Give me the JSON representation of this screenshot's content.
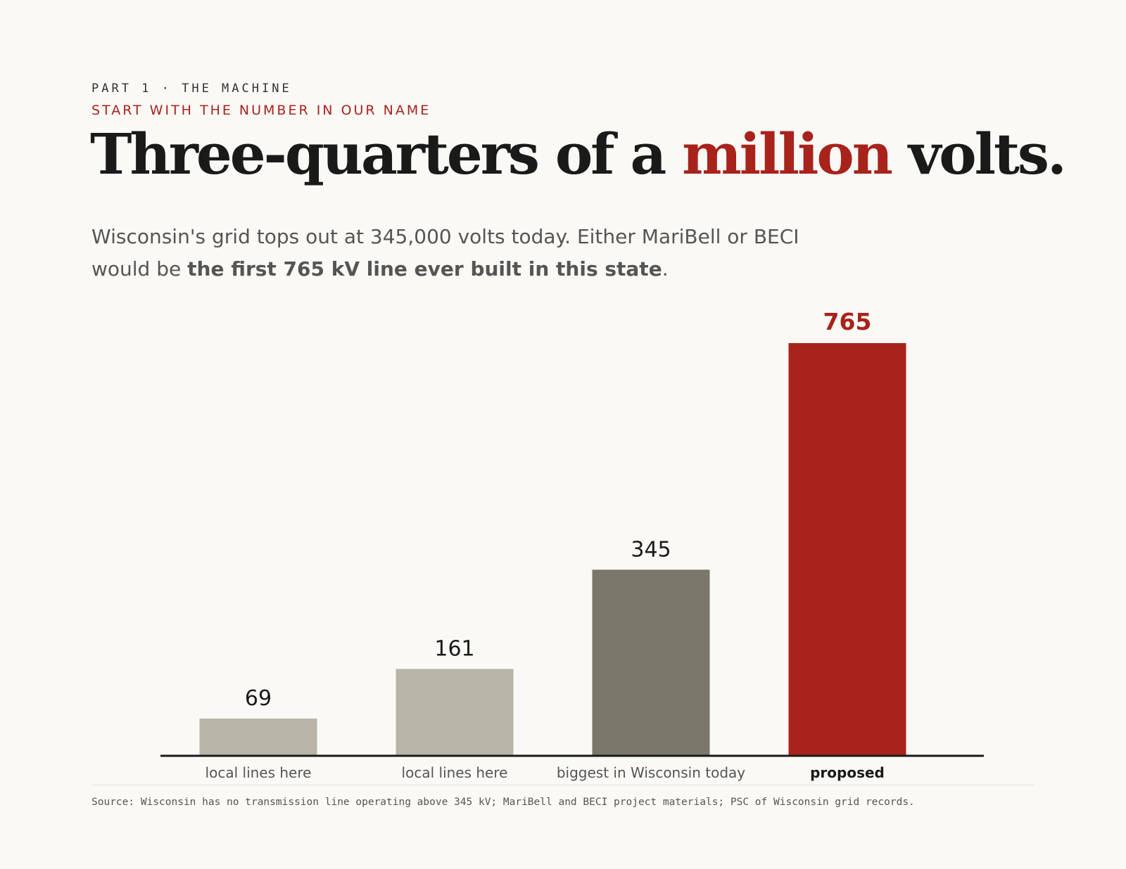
{
  "header": {
    "kicker": "PART 1 · THE MACHINE",
    "subkicker": "START WITH THE NUMBER IN OUR NAME",
    "headline_pre": "Three-quarters of a ",
    "headline_accent": "million",
    "headline_post": " volts."
  },
  "dek": {
    "text_pre": "Wisconsin's grid tops out at 345,000 volts today. Either MariBell or BECI would be ",
    "text_bold": "the first 765 kV line ever built in this state",
    "text_post": "."
  },
  "colors": {
    "accent": "#a8231b",
    "bar_light": "#b8b4a7",
    "bar_dark": "#7b776b",
    "baseline": "#1a1a1a"
  },
  "chart_data": {
    "type": "bar",
    "categories": [
      "local lines here",
      "local lines here",
      "biggest in Wisconsin today",
      "proposed"
    ],
    "values": [
      69,
      161,
      345,
      765
    ],
    "bar_colors": [
      "#b8b4a7",
      "#b8b4a7",
      "#7b776b",
      "#a8231b"
    ],
    "highlight_index": 3,
    "title": "",
    "xlabel": "",
    "ylabel": "",
    "ylim": [
      0,
      765
    ]
  },
  "source": "Source: Wisconsin has no transmission line operating above 345 kV; MariBell and BECI project materials; PSC of Wisconsin grid records."
}
